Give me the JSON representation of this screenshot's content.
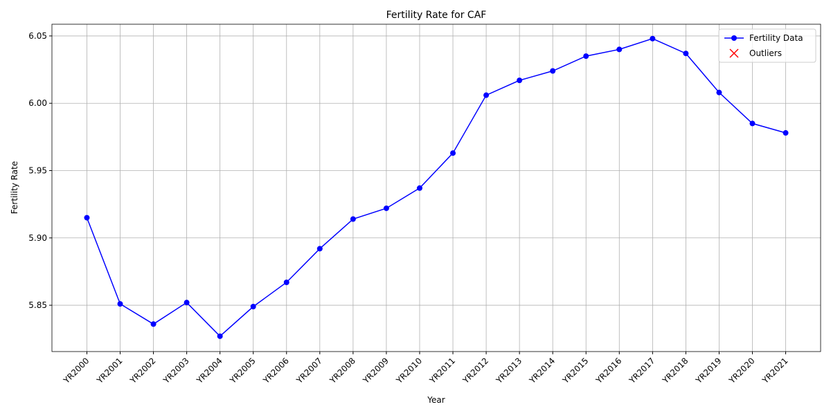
{
  "chart_data": {
    "type": "line",
    "title": "Fertility Rate for CAF",
    "x_label": "Year",
    "y_label": "Fertility Rate",
    "categories": [
      "YR2000",
      "YR2001",
      "YR2002",
      "YR2003",
      "YR2004",
      "YR2005",
      "YR2006",
      "YR2007",
      "YR2008",
      "YR2009",
      "YR2010",
      "YR2011",
      "YR2012",
      "YR2013",
      "YR2014",
      "YR2015",
      "YR2016",
      "YR2017",
      "YR2018",
      "YR2019",
      "YR2020",
      "YR2021"
    ],
    "series": [
      {
        "name": "Fertility Data",
        "color": "#0000ff",
        "marker": "o",
        "values": [
          5.915,
          5.851,
          5.836,
          5.852,
          5.827,
          5.849,
          5.867,
          5.892,
          5.914,
          5.922,
          5.937,
          5.963,
          6.006,
          6.017,
          6.024,
          6.035,
          6.04,
          6.048,
          6.037,
          6.008,
          5.985,
          5.978
        ]
      },
      {
        "name": "Outliers",
        "color": "#ff0000",
        "marker": "x",
        "values": [
          null,
          null,
          null,
          null,
          null,
          null,
          null,
          null,
          null,
          null,
          null,
          null,
          null,
          null,
          null,
          null,
          null,
          null,
          null,
          null,
          null,
          null
        ]
      }
    ],
    "ylim": [
      5.8156,
      6.0587
    ],
    "yticks": [
      5.85,
      {
        "value": 5.9,
        "label": "5.90"
      },
      5.95,
      {
        "value": 6,
        "label": "6.00"
      },
      6.05
    ],
    "grid": true,
    "legend": "upper right"
  }
}
